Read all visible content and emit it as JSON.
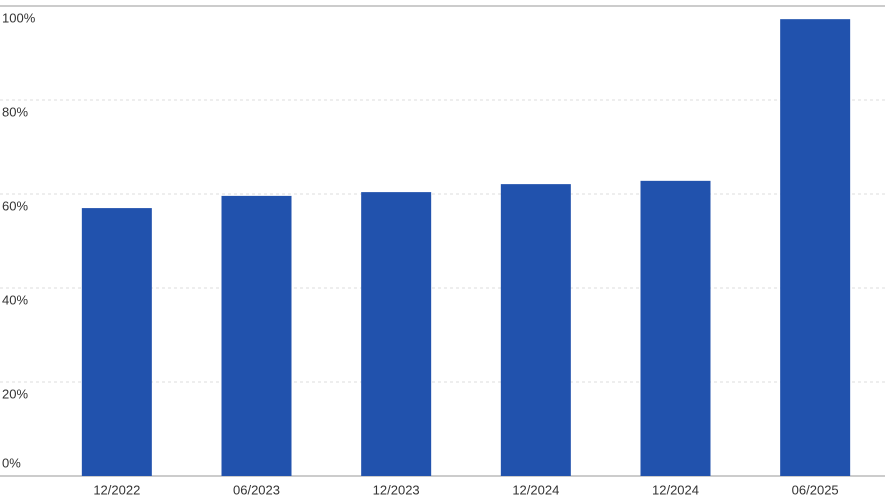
{
  "chart_data": {
    "type": "bar",
    "categories": [
      "12/2022",
      "06/2023",
      "12/2023",
      "12/2024",
      "12/2024",
      "06/2025"
    ],
    "values": [
      57.0,
      59.6,
      60.4,
      62.1,
      62.8,
      97.2
    ],
    "color": "#2152ad",
    "ylim": [
      0,
      100
    ],
    "yticks": [
      {
        "value": 0,
        "label": "0%"
      },
      {
        "value": 20,
        "label": "20%"
      },
      {
        "value": 40,
        "label": "40%"
      },
      {
        "value": 60,
        "label": "60%"
      },
      {
        "value": 80,
        "label": "80%"
      },
      {
        "value": 100,
        "label": "100%"
      }
    ],
    "grid": true
  }
}
